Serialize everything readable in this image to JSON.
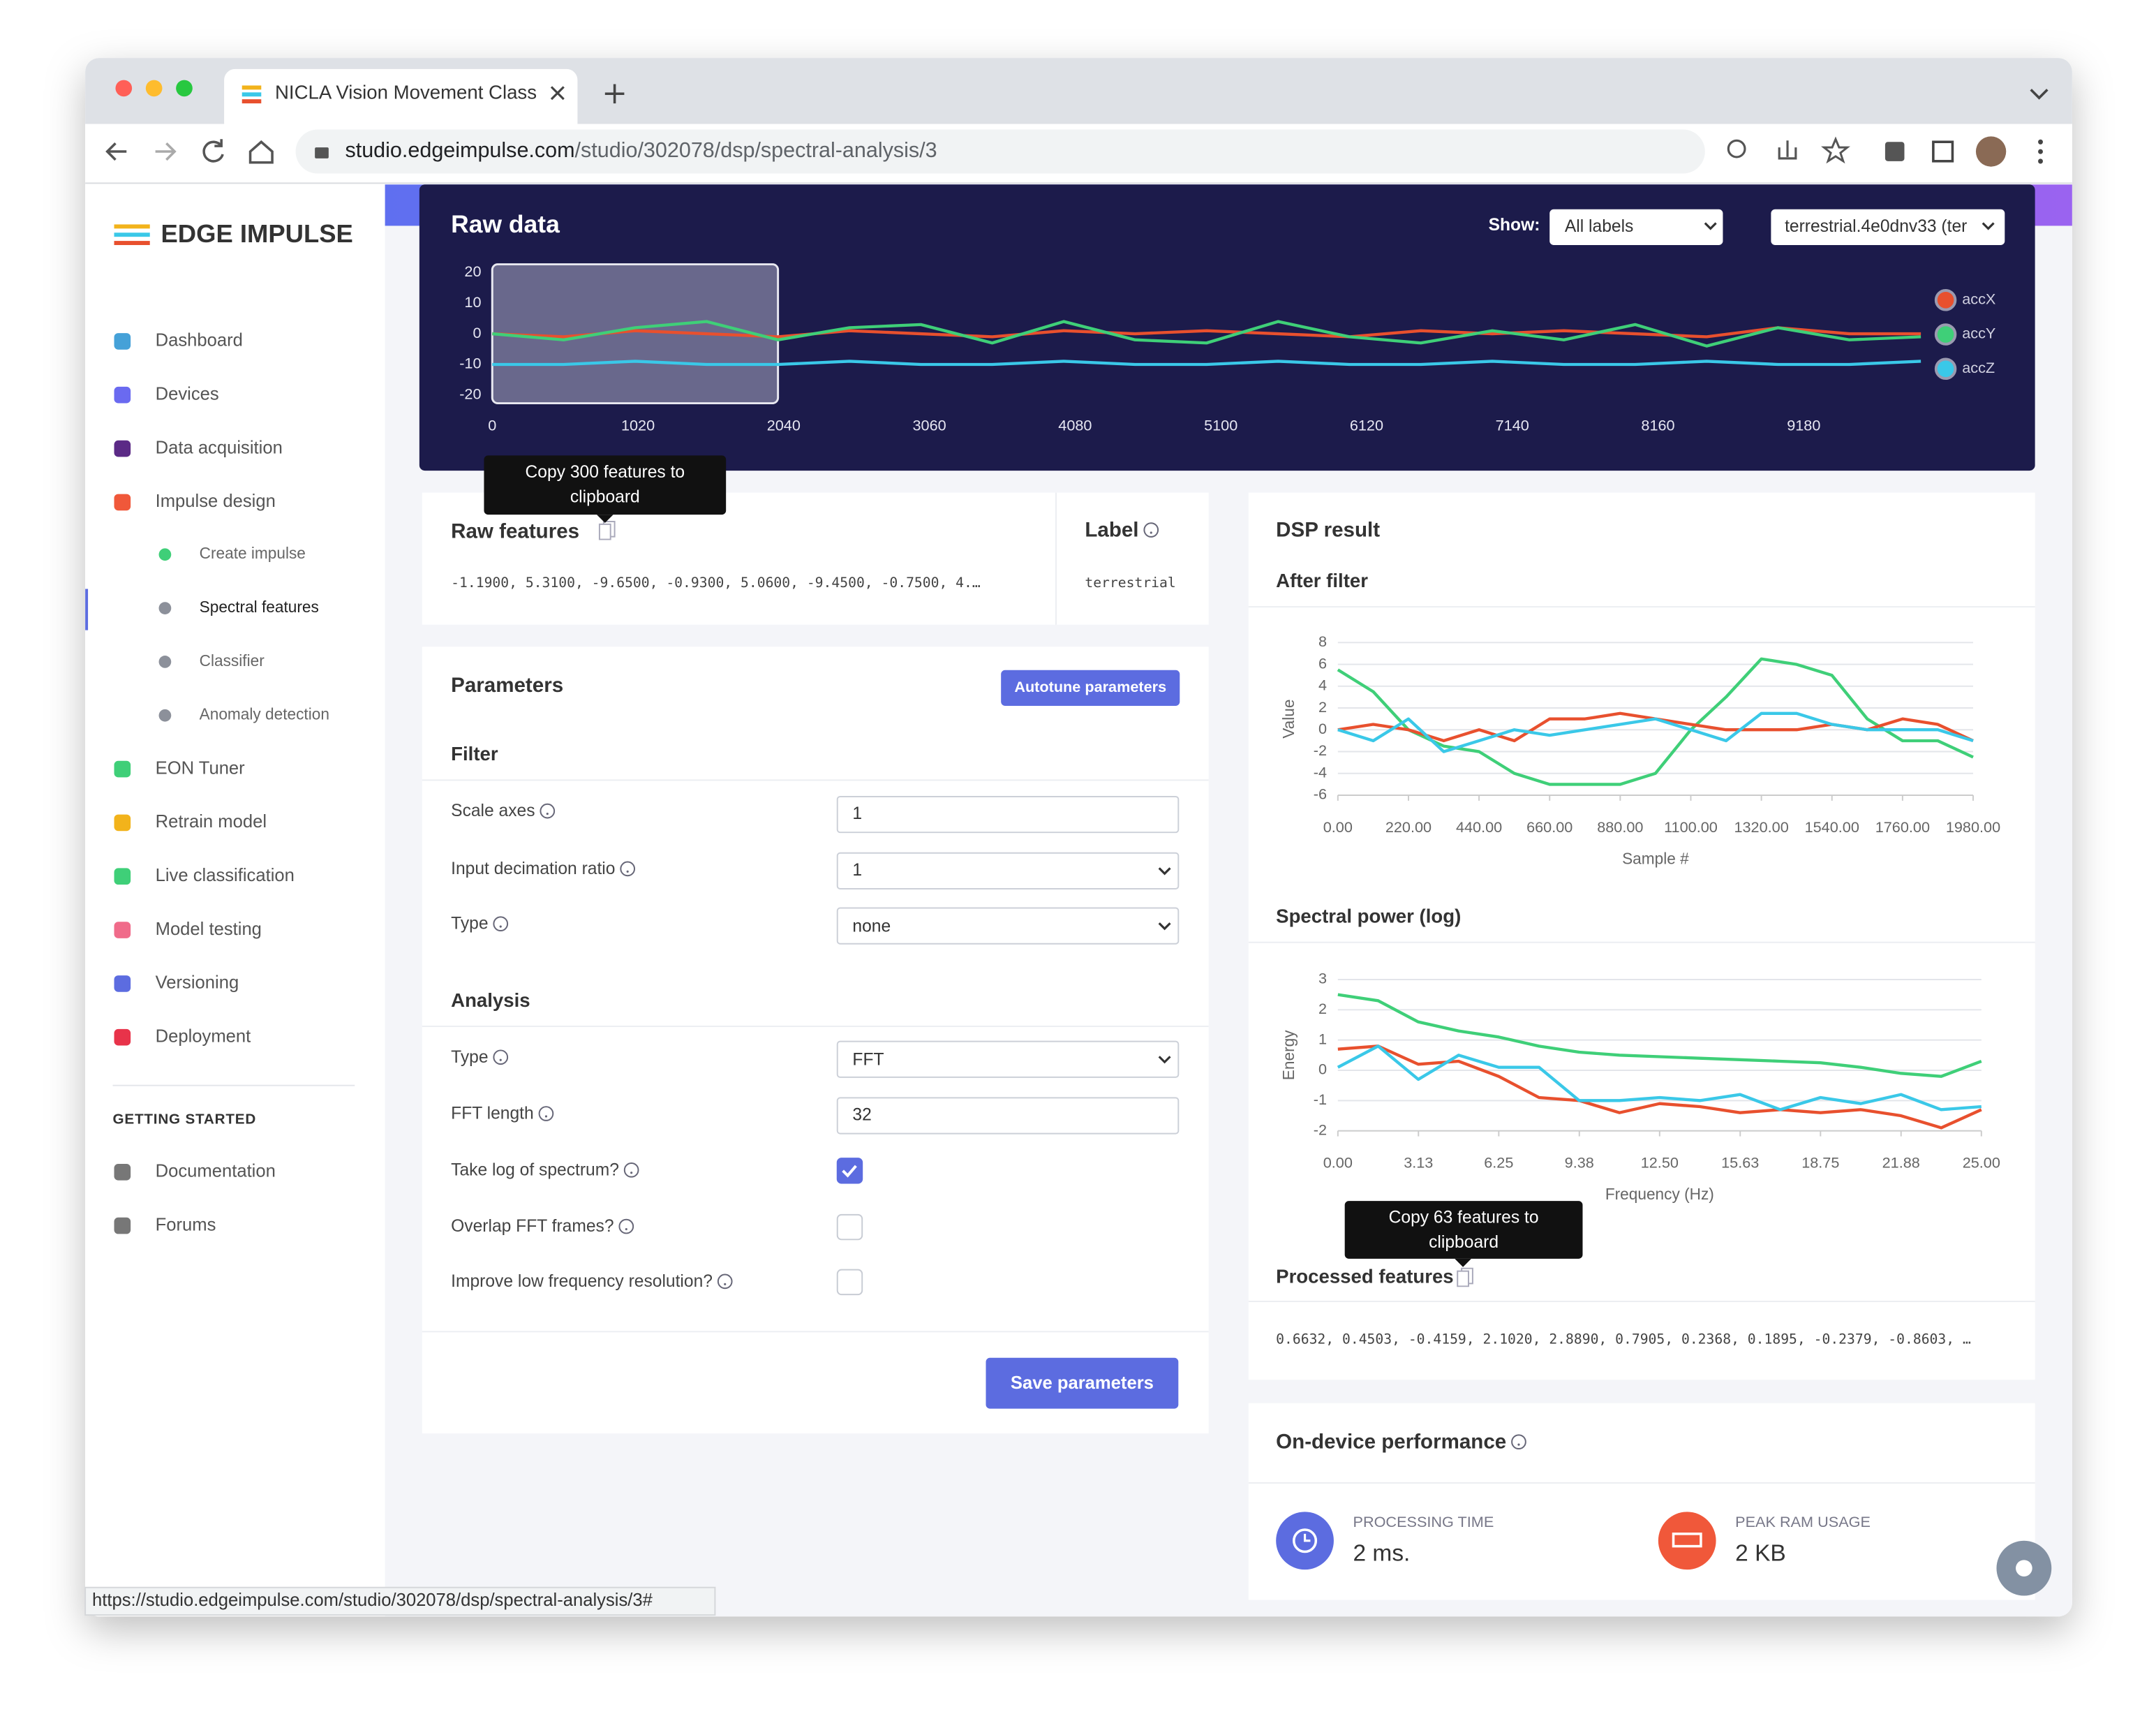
{
  "browser": {
    "tab_title": "NICLA Vision Movement Class",
    "url_host": "studio.edgeimpulse.com",
    "url_path": "/studio/302078/dsp/spectral-analysis/3",
    "status_url": "https://studio.edgeimpulse.com/studio/302078/dsp/spectral-analysis/3#"
  },
  "sidebar": {
    "brand": "EDGE IMPULSE",
    "items": [
      "Dashboard",
      "Devices",
      "Data acquisition",
      "Impulse design"
    ],
    "impulse_steps": [
      "Create impulse",
      "Spectral features",
      "Classifier",
      "Anomaly detection"
    ],
    "more_items": [
      "EON Tuner",
      "Retrain model",
      "Live classification",
      "Model testing",
      "Versioning",
      "Deployment"
    ],
    "section": "GETTING STARTED",
    "help_items": [
      "Documentation",
      "Forums"
    ]
  },
  "raw_data": {
    "title": "Raw data",
    "show_label": "Show:",
    "filter": "All labels",
    "sample": "terrestrial.4e0dnv33 (ter",
    "tooltip": "Copy 300 features to clipboard",
    "chart": {
      "type": "line",
      "xlim": [
        0,
        10000
      ],
      "ylim": [
        -20,
        20
      ],
      "xticks": [
        0,
        1020,
        2040,
        3060,
        4080,
        5100,
        6120,
        7140,
        8160,
        9180
      ],
      "yticks": [
        20,
        10,
        0,
        -10,
        -20
      ],
      "window": [
        0,
        2000
      ],
      "x": [
        0,
        500,
        1000,
        1500,
        2000,
        2500,
        3000,
        3500,
        4000,
        4500,
        5000,
        5500,
        6000,
        6500,
        7000,
        7500,
        8000,
        8500,
        9000,
        9500,
        10000
      ],
      "series": [
        {
          "name": "accX",
          "color": "#e8502e",
          "values": [
            0,
            -1,
            1,
            0,
            -1,
            1,
            0,
            -1,
            1,
            0,
            1,
            0,
            -1,
            1,
            0,
            1,
            0,
            -1,
            2,
            0,
            0
          ]
        },
        {
          "name": "accY",
          "color": "#3fcf78",
          "values": [
            0,
            -2,
            2,
            4,
            -2,
            2,
            3,
            -3,
            4,
            -2,
            -3,
            4,
            -1,
            -3,
            1,
            -2,
            3,
            -4,
            2,
            -2,
            -1
          ]
        },
        {
          "name": "accZ",
          "color": "#3ac8e8",
          "values": [
            -10,
            -10,
            -9,
            -10,
            -10,
            -9,
            -10,
            -10,
            -9,
            -10,
            -10,
            -9,
            -10,
            -10,
            -9,
            -10,
            -10,
            -9,
            -10,
            -10,
            -9
          ]
        }
      ]
    }
  },
  "raw_features": {
    "title": "Raw features",
    "values": "-1.1900, 5.3100, -9.6500, -0.9300, 5.0600, -9.4500, -0.7500, 4.…",
    "label_title": "Label",
    "label": "terrestrial"
  },
  "parameters": {
    "title": "Parameters",
    "autotune": "Autotune parameters",
    "filter": {
      "title": "Filter",
      "scale_axes": {
        "label": "Scale axes",
        "value": "1"
      },
      "decimation": {
        "label": "Input decimation ratio",
        "value": "1"
      },
      "type": {
        "label": "Type",
        "value": "none"
      }
    },
    "analysis": {
      "title": "Analysis",
      "type": {
        "label": "Type",
        "value": "FFT"
      },
      "fft_length": {
        "label": "FFT length",
        "value": "32"
      },
      "take_log": {
        "label": "Take log of spectrum?",
        "checked": true
      },
      "overlap": {
        "label": "Overlap FFT frames?",
        "checked": false
      },
      "low_freq": {
        "label": "Improve low frequency resolution?",
        "checked": false
      }
    },
    "save": "Save parameters"
  },
  "dsp_result": {
    "title": "DSP result",
    "after_filter": {
      "title": "After filter",
      "chart": {
        "type": "line",
        "xlabel": "Sample #",
        "ylabel": "Value",
        "xlim": [
          0,
          1980
        ],
        "ylim": [
          -6,
          8
        ],
        "xticks": [
          {
            "value": 0,
            "label": "0.00"
          },
          {
            "value": 220,
            "label": "220.00"
          },
          {
            "value": 440,
            "label": "440.00"
          },
          {
            "value": 660,
            "label": "660.00"
          },
          {
            "value": 880,
            "label": "880.00"
          },
          {
            "value": 1100,
            "label": "1100.00"
          },
          {
            "value": 1320,
            "label": "1320.00"
          },
          {
            "value": 1540,
            "label": "1540.00"
          },
          {
            "value": 1760,
            "label": "1760.00"
          },
          {
            "value": 1980,
            "label": "1980.00"
          }
        ],
        "yticks": [
          8,
          6,
          4,
          2,
          0,
          -2,
          -4,
          -6
        ],
        "grid": true,
        "x": [
          0,
          110,
          220,
          330,
          440,
          550,
          660,
          770,
          880,
          990,
          1100,
          1210,
          1320,
          1430,
          1540,
          1650,
          1760,
          1870,
          1980
        ],
        "series": [
          {
            "color": "#3fcf78",
            "values": [
              5.5,
              3.5,
              0,
              -1.5,
              -2,
              -4,
              -5,
              -5,
              -5,
              -4,
              0,
              3,
              6.5,
              6,
              5,
              1,
              -1,
              -1,
              -2.5
            ]
          },
          {
            "color": "#e8502e",
            "values": [
              0,
              0.5,
              0,
              -1,
              0,
              -1,
              1,
              1,
              1.5,
              1,
              0.5,
              0,
              0,
              0,
              0.5,
              0,
              1,
              0.5,
              -1
            ]
          },
          {
            "color": "#3ac8e8",
            "values": [
              0,
              -1,
              1,
              -2,
              -1,
              0,
              -0.5,
              0,
              0.5,
              1,
              0,
              -1,
              1.5,
              1.5,
              0.5,
              0,
              0,
              0,
              -1
            ]
          }
        ]
      }
    },
    "spectral_power": {
      "title": "Spectral power (log)",
      "chart": {
        "type": "line",
        "xlabel": "Frequency (Hz)",
        "ylabel": "Energy",
        "xlim": [
          0,
          25
        ],
        "ylim": [
          -2,
          3
        ],
        "xticks": [
          {
            "value": 0,
            "label": "0.00"
          },
          3.13,
          6.25,
          9.38,
          {
            "value": 12.5,
            "label": "12.50"
          },
          15.63,
          18.75,
          21.88,
          {
            "value": 25,
            "label": "25.00"
          }
        ],
        "yticks": [
          3,
          2,
          1,
          0,
          -1,
          -2
        ],
        "grid": true,
        "x": [
          0,
          1.5625,
          3.125,
          4.6875,
          6.25,
          7.8125,
          9.375,
          10.9375,
          12.5,
          14.0625,
          15.625,
          17.1875,
          18.75,
          20.3125,
          21.875,
          23.4375,
          25
        ],
        "series": [
          {
            "color": "#3fcf78",
            "values": [
              2.5,
              2.3,
              1.6,
              1.3,
              1.1,
              0.8,
              0.6,
              0.5,
              0.45,
              0.4,
              0.35,
              0.3,
              0.25,
              0.1,
              -0.1,
              -0.2,
              0.3
            ]
          },
          {
            "color": "#e8502e",
            "values": [
              0.7,
              0.8,
              0.2,
              0.3,
              -0.2,
              -0.9,
              -1,
              -1.4,
              -1.1,
              -1.2,
              -1.4,
              -1.3,
              -1.4,
              -1.3,
              -1.5,
              -1.9,
              -1.3
            ]
          },
          {
            "color": "#3ac8e8",
            "values": [
              0.1,
              0.8,
              -0.3,
              0.5,
              0.1,
              0.1,
              -1,
              -1,
              -0.9,
              -1,
              -0.8,
              -1.3,
              -0.9,
              -1.1,
              -0.8,
              -1.3,
              -1.2
            ]
          }
        ]
      }
    },
    "tooltip": "Copy 63 features to clipboard",
    "processed_title": "Processed features",
    "processed_values": "0.6632, 0.4503, -0.4159, 2.1020, 2.8890, 0.7905, 0.2368, 0.1895, -0.2379, -0.8603, …"
  },
  "performance": {
    "title": "On-device performance",
    "processing_label": "PROCESSING TIME",
    "processing_value": "2 ms.",
    "ram_label": "PEAK RAM USAGE",
    "ram_value": "2 KB"
  }
}
